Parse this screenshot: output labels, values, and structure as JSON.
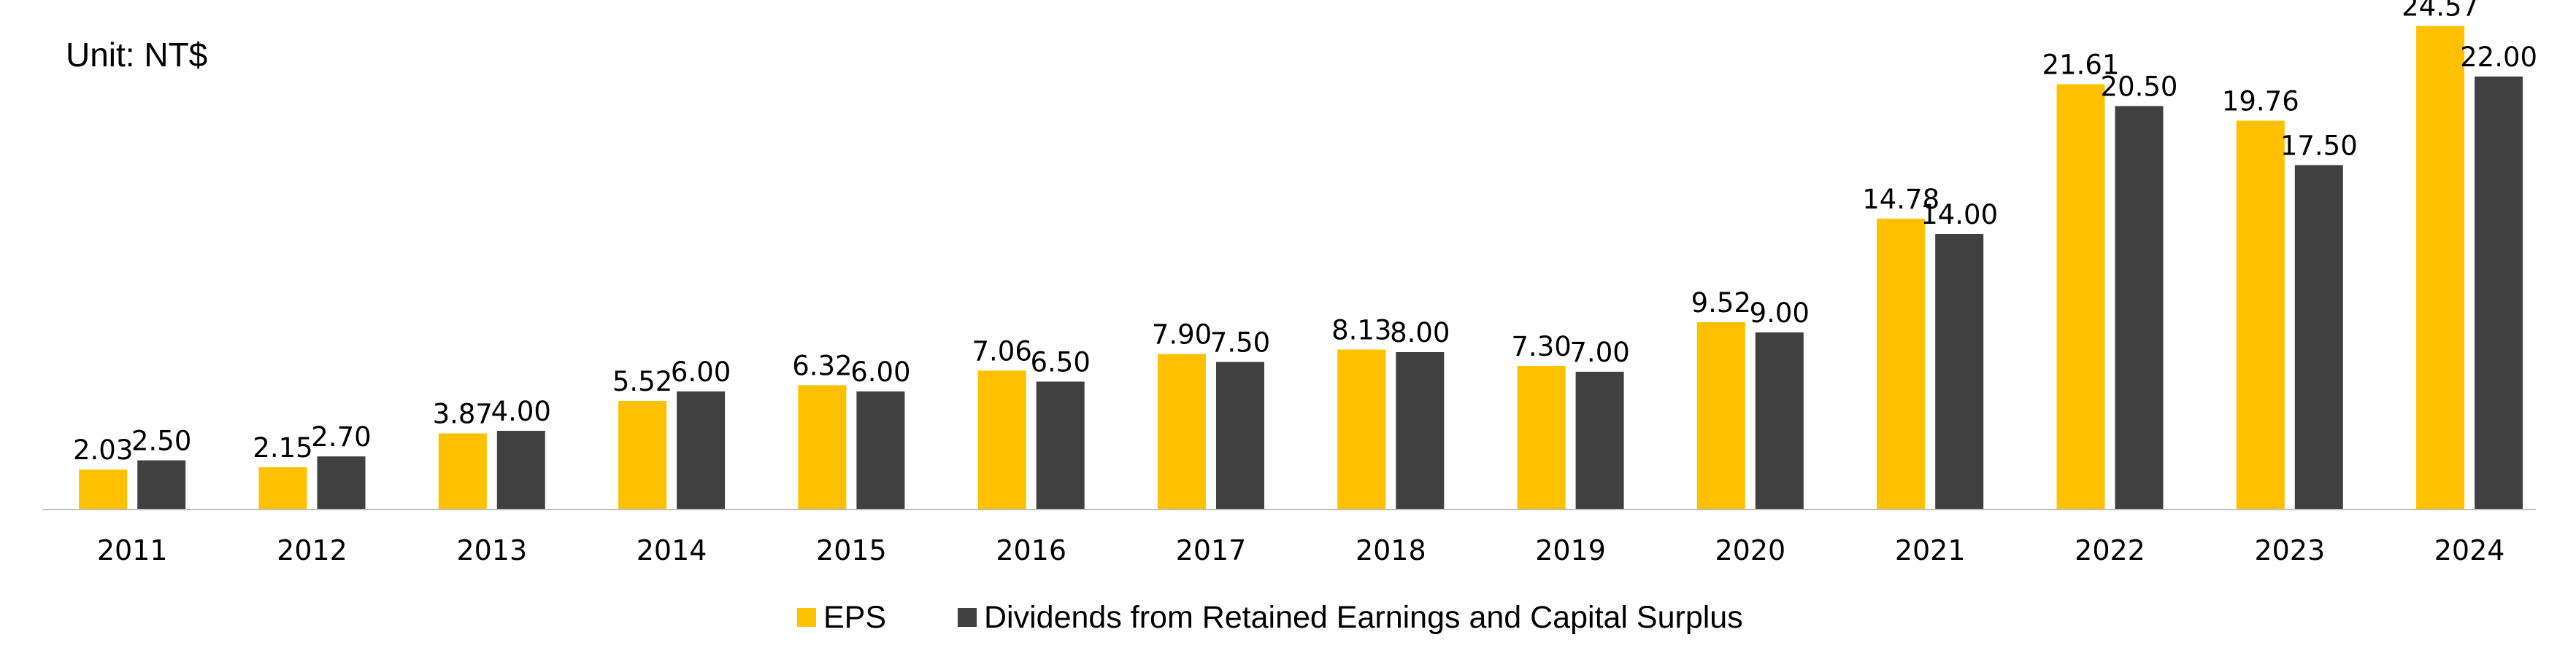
{
  "chart_data": {
    "type": "bar",
    "unit_label": "Unit: NT$",
    "categories": [
      "2011",
      "2012",
      "2013",
      "2014",
      "2015",
      "2016",
      "2017",
      "2018",
      "2019",
      "2020",
      "2021",
      "2022",
      "2023",
      "2024"
    ],
    "series": [
      {
        "name": "EPS",
        "color": "#FFC000",
        "values": [
          2.03,
          2.15,
          3.87,
          5.52,
          6.32,
          7.06,
          7.9,
          8.13,
          7.3,
          9.52,
          14.78,
          21.61,
          19.76,
          24.57
        ],
        "labels": [
          "2.03",
          "2.15",
          "3.87",
          "5.52",
          "6.32",
          "7.06",
          "7.90",
          "8.13",
          "7.30",
          "9.52",
          "14.78",
          "21.61",
          "19.76",
          "24.57"
        ]
      },
      {
        "name": "Dividends from Retained Earnings and Capital Surplus",
        "color": "#404040",
        "values": [
          2.5,
          2.7,
          4.0,
          6.0,
          6.0,
          6.5,
          7.5,
          8.0,
          7.0,
          9.0,
          14.0,
          20.5,
          17.5,
          22.0
        ],
        "labels": [
          "2.50",
          "2.70",
          "4.00",
          "6.00",
          "6.00",
          "6.50",
          "7.50",
          "8.00",
          "7.00",
          "9.00",
          "14.00",
          "20.50",
          "17.50",
          "22.00"
        ]
      }
    ],
    "ylim": [
      0,
      27
    ],
    "grid": false,
    "legend_position": "bottom"
  }
}
